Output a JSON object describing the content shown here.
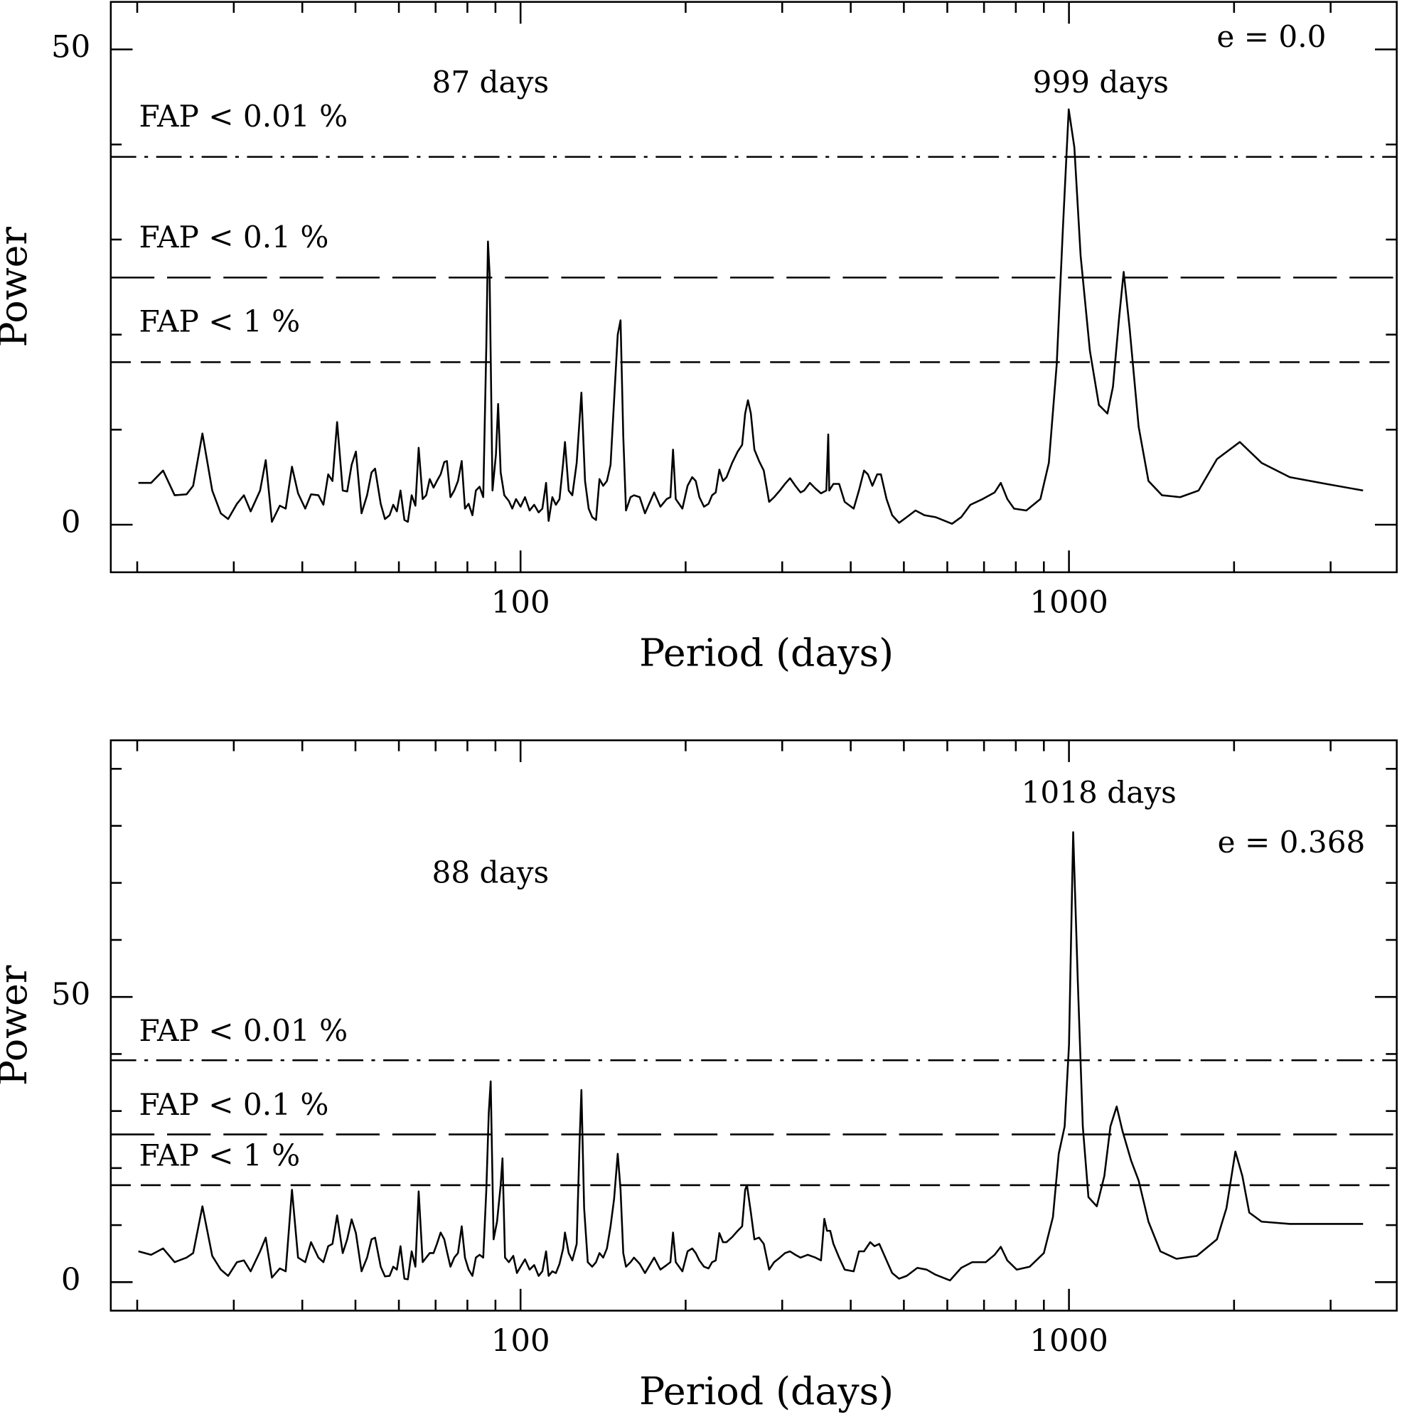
{
  "chart_data": [
    {
      "type": "line",
      "x_label": "Period (days)",
      "y_label": "Power",
      "xlog": true,
      "xlim": [
        17.9,
        3960
      ],
      "xticks": [
        100,
        1000
      ],
      "xminor": [
        20,
        30,
        40,
        50,
        60,
        70,
        80,
        90,
        200,
        300,
        400,
        500,
        600,
        700,
        800,
        900,
        2000,
        3000
      ],
      "ylim": [
        -5,
        55
      ],
      "yticks": [
        0,
        50
      ],
      "yminor": [
        10,
        20,
        30,
        40
      ],
      "annotations": [
        "87 days",
        "999 days",
        "e = 0.0"
      ],
      "reference_lines": [
        {
          "label": "FAP < 0.01 %",
          "value": 38.7,
          "style": "dashdot"
        },
        {
          "label": "FAP < 0.1 %",
          "value": 26.0,
          "style": "longdash"
        },
        {
          "label": "FAP < 1 %",
          "value": 17.1,
          "style": "dash"
        }
      ],
      "x": [
        20.1,
        21.2,
        22.3,
        23.4,
        24.6,
        25.3,
        26.3,
        27.4,
        28.4,
        29.3,
        30.4,
        31.3,
        32.2,
        33.5,
        34.3,
        35.2,
        36.4,
        37.3,
        38.3,
        39.3,
        40.5,
        41.5,
        42.8,
        43.7,
        44.6,
        45.4,
        46.3,
        47.4,
        48.3,
        49.2,
        50.1,
        51.3,
        52.5,
        53.5,
        54.3,
        55.6,
        56.6,
        57.7,
        58.6,
        59.5,
        60.4,
        61.4,
        62.3,
        63.3,
        64.3,
        65.2,
        66.3,
        67.3,
        68.3,
        69.4,
        70.4,
        71.5,
        72.6,
        73.4,
        74.5,
        75.7,
        76.9,
        78.1,
        79.2,
        80.4,
        81.7,
        82.9,
        84.2,
        85.5,
        86.6,
        87.2,
        87.8,
        88.9,
        90.2,
        91.0,
        92.0,
        93.4,
        95.2,
        96.6,
        98.1,
        100,
        101.9,
        103.9,
        105.9,
        107.9,
        109.6,
        111.3,
        112.5,
        114.3,
        116.0,
        117.8,
        119.6,
        120.5,
        122.4,
        124.3,
        126.6,
        129.1,
        131.1,
        133.1,
        135.1,
        137.3,
        139.3,
        141.5,
        143.7,
        145.9,
        148.1,
        150.4,
        152.2,
        153.9,
        155.7,
        158.7,
        161.0,
        164.9,
        168.6,
        175.2,
        179.9,
        184.7,
        187.6,
        189.7,
        191.9,
        197.3,
        201.6,
        205.6,
        208.7,
        211.9,
        216.0,
        220.2,
        223.5,
        226.9,
        230.4,
        234.0,
        237.5,
        243.1,
        248.9,
        253.6,
        256.8,
        259.8,
        263.0,
        267.0,
        272.2,
        277.6,
        284,
        290,
        297,
        303.5,
        310,
        317,
        324,
        329,
        337,
        345,
        353,
        361,
        364,
        365.5,
        372,
        381,
        390,
        405,
        414,
        423,
        430,
        438,
        447,
        454,
        465,
        476,
        490,
        506,
        525,
        545,
        571,
        612,
        636,
        661,
        696,
        732,
        751,
        772,
        794,
        836,
        887,
        919,
        950,
        975,
        999,
        1023,
        1050,
        1092,
        1134,
        1175,
        1203,
        1234,
        1258,
        1290,
        1340,
        1396,
        1478,
        1595,
        1723,
        1861,
        2049,
        2245,
        2527,
        2945,
        3437
      ],
      "series": [
        {
          "color": "#000000",
          "values": [
            4.4,
            4.4,
            5.7,
            3.1,
            3.2,
            4.1,
            9.6,
            3.6,
            1.2,
            0.6,
            2.2,
            3.1,
            1.4,
            3.6,
            6.8,
            0.3,
            2.0,
            1.7,
            6.1,
            3.3,
            1.7,
            3.2,
            3.1,
            2.1,
            5.3,
            4.6,
            10.8,
            3.6,
            3.5,
            6.3,
            7.7,
            1.2,
            3.1,
            5.5,
            5.9,
            2.2,
            0.6,
            1.0,
            2.1,
            1.4,
            3.6,
            0.5,
            0.3,
            3.1,
            2.0,
            8.1,
            2.7,
            3.1,
            4.8,
            3.9,
            4.6,
            5.3,
            6.6,
            6.7,
            2.9,
            3.6,
            4.6,
            6.7,
            1.7,
            2.2,
            1.0,
            3.6,
            4.0,
            2.9,
            18.8,
            29.8,
            26.4,
            3.6,
            7.4,
            12.7,
            5.5,
            3.1,
            2.5,
            1.7,
            2.7,
            1.9,
            2.9,
            1.5,
            2.1,
            1.3,
            1.7,
            4.4,
            0.4,
            2.9,
            2.1,
            2.7,
            6.5,
            8.7,
            3.6,
            3.1,
            6.5,
            13.9,
            4.6,
            1.7,
            0.8,
            0.5,
            4.8,
            4.1,
            4.6,
            6.3,
            13.1,
            20.0,
            21.5,
            9.3,
            1.5,
            2.9,
            3.1,
            2.9,
            1.2,
            3.4,
            1.9,
            2.7,
            2.9,
            7.9,
            2.7,
            1.7,
            4.1,
            5.0,
            4.6,
            2.9,
            1.9,
            2.2,
            3.1,
            3.4,
            5.8,
            4.6,
            5.0,
            6.5,
            7.7,
            8.4,
            11.7,
            13.1,
            11.7,
            7.9,
            6.7,
            5.7,
            2.4,
            2.9,
            3.6,
            4.3,
            4.9,
            4.1,
            3.4,
            3.6,
            4.4,
            3.8,
            3.3,
            3.6,
            9.5,
            3.6,
            4.3,
            4.3,
            2.4,
            1.7,
            3.6,
            5.7,
            5.3,
            4.1,
            5.3,
            5.3,
            2.7,
            1.0,
            0.2,
            0.8,
            1.5,
            1.0,
            0.8,
            0.1,
            0.8,
            2.1,
            2.7,
            3.4,
            4.4,
            2.7,
            1.7,
            1.5,
            2.7,
            6.5,
            16.9,
            31.2,
            43.7,
            39.7,
            28.3,
            18.3,
            12.6,
            11.7,
            14.5,
            21.7,
            26.6,
            20.7,
            10.3,
            4.6,
            3.1,
            2.9,
            3.6,
            6.9,
            8.7,
            6.5,
            5.0,
            4.3,
            3.6
          ]
        }
      ]
    },
    {
      "type": "line",
      "x_label": "Period (days)",
      "y_label": "Power",
      "xlog": true,
      "xlim": [
        17.9,
        3960
      ],
      "xticks": [
        100,
        1000
      ],
      "xminor": [
        20,
        30,
        40,
        50,
        60,
        70,
        80,
        90,
        200,
        300,
        400,
        500,
        600,
        700,
        800,
        900,
        2000,
        3000
      ],
      "ylim": [
        -5,
        95
      ],
      "yticks": [
        0,
        50
      ],
      "yminor": [
        10,
        20,
        30,
        40,
        60,
        70,
        80,
        90
      ],
      "annotations": [
        "1018 days",
        "88 days",
        "e = 0.368"
      ],
      "reference_lines": [
        {
          "label": "FAP < 0.01 %",
          "value": 38.9,
          "style": "dashdot"
        },
        {
          "label": "FAP < 0.1 %",
          "value": 25.9,
          "style": "longdash"
        },
        {
          "label": "FAP < 1 %",
          "value": 17.0,
          "style": "dash"
        }
      ],
      "x": [
        20.1,
        21.2,
        22.3,
        23.4,
        24.6,
        25.3,
        26.3,
        27.4,
        28.4,
        29.3,
        30.4,
        31.3,
        32.2,
        33.5,
        34.3,
        35.2,
        36.4,
        37.3,
        38.3,
        39.3,
        40.5,
        41.5,
        42.8,
        43.7,
        44.6,
        45.4,
        46.3,
        47.4,
        48.3,
        49.2,
        50.1,
        51.3,
        52.5,
        53.5,
        54.3,
        55.6,
        56.6,
        57.7,
        58.6,
        59.5,
        60.4,
        61.4,
        62.3,
        63.3,
        64.3,
        65.2,
        66.3,
        67.3,
        68.3,
        69.4,
        70.4,
        71.5,
        72.6,
        73.4,
        74.5,
        75.7,
        76.9,
        78.1,
        79.2,
        80.4,
        81.7,
        82.9,
        84.2,
        85.5,
        86.6,
        87.5,
        88.2,
        89.3,
        90.6,
        92.0,
        92.7,
        93.7,
        95.2,
        97.0,
        98.5,
        100,
        101.9,
        103.9,
        105.9,
        107.9,
        109.6,
        111.3,
        112.5,
        114.3,
        116.0,
        117.8,
        119.6,
        120.5,
        122.4,
        124.3,
        126.6,
        128.1,
        129.1,
        130.6,
        132.6,
        135.1,
        137.3,
        139.3,
        141.5,
        143.7,
        145.9,
        148.1,
        150.4,
        152.2,
        153.9,
        155.7,
        158.7,
        161.0,
        164.9,
        168.6,
        175.2,
        179.9,
        184.7,
        187.6,
        189.7,
        191.9,
        197.3,
        201.6,
        205.6,
        208.7,
        211.9,
        216.0,
        220.2,
        223.5,
        226.9,
        230.4,
        234.0,
        237.5,
        243.1,
        248.9,
        253.6,
        256.8,
        258.7,
        263.0,
        267.0,
        272.2,
        277.6,
        284,
        290,
        297,
        303.5,
        310,
        317,
        324,
        334,
        345,
        353,
        358,
        362,
        367,
        372,
        381,
        390,
        405,
        414,
        423,
        434,
        442,
        451,
        465,
        476,
        490,
        506,
        529,
        550,
        571,
        607,
        636,
        666,
        705,
        732,
        751,
        772,
        803,
        848,
        900,
        935,
        958,
        982,
        1000,
        1018,
        1038,
        1060,
        1085,
        1124,
        1160,
        1190,
        1222,
        1252,
        1298,
        1340,
        1396,
        1468,
        1570,
        1711,
        1861,
        1937,
        2011,
        2071,
        2132,
        2245,
        2527,
        2945,
        3437
      ],
      "series": [
        {
          "color": "#000000",
          "values": [
            5.4,
            4.8,
            5.9,
            3.5,
            4.3,
            5.1,
            13.3,
            4.6,
            2.2,
            1.1,
            3.5,
            3.8,
            1.9,
            5.4,
            7.8,
            0.8,
            2.4,
            1.9,
            16.2,
            4.3,
            3.5,
            7.0,
            4.3,
            3.5,
            6.3,
            6.7,
            11.7,
            5.1,
            7.5,
            11.0,
            8.6,
            1.9,
            4.3,
            7.5,
            7.8,
            2.7,
            1.0,
            1.1,
            2.7,
            2.2,
            6.3,
            0.6,
            0.5,
            5.4,
            2.7,
            15.9,
            3.5,
            4.3,
            5.1,
            5.1,
            6.7,
            8.7,
            7.5,
            5.4,
            2.7,
            4.3,
            5.1,
            9.8,
            4.3,
            2.2,
            1.1,
            4.3,
            4.8,
            4.3,
            16.2,
            29.7,
            35.2,
            7.5,
            10.6,
            17.0,
            21.7,
            4.3,
            3.5,
            4.6,
            1.6,
            2.7,
            4.0,
            2.2,
            3.0,
            1.1,
            1.9,
            5.4,
            1.1,
            1.9,
            1.6,
            3.2,
            5.9,
            8.7,
            5.1,
            3.8,
            6.7,
            24.1,
            33.7,
            13.0,
            3.5,
            2.7,
            3.5,
            5.1,
            4.3,
            5.9,
            9.8,
            14.6,
            22.5,
            16.2,
            5.1,
            2.7,
            3.5,
            4.3,
            3.2,
            1.6,
            4.3,
            2.2,
            3.0,
            3.5,
            8.7,
            3.5,
            1.9,
            5.4,
            5.9,
            5.1,
            3.8,
            2.7,
            2.4,
            3.5,
            3.8,
            8.6,
            7.0,
            7.0,
            7.9,
            9.0,
            9.8,
            16.2,
            17.0,
            12.2,
            7.5,
            7.8,
            6.7,
            2.2,
            3.5,
            4.3,
            5.1,
            5.4,
            4.8,
            4.3,
            4.8,
            4.3,
            3.8,
            11.1,
            9.0,
            9.0,
            6.7,
            4.3,
            2.2,
            1.9,
            5.4,
            5.4,
            7.0,
            6.3,
            6.7,
            3.8,
            1.6,
            0.6,
            1.1,
            2.5,
            2.2,
            1.3,
            0.3,
            2.5,
            3.5,
            3.5,
            4.8,
            6.2,
            3.8,
            2.2,
            2.7,
            5.1,
            11.4,
            22.5,
            27.3,
            41.6,
            78.9,
            52.7,
            27.3,
            14.9,
            13.3,
            18.6,
            27.3,
            30.8,
            26.5,
            21.3,
            17.8,
            10.6,
            5.4,
            4.1,
            4.6,
            7.5,
            13.0,
            22.9,
            18.6,
            12.2,
            10.6,
            10.2,
            10.2,
            10.2
          ]
        }
      ]
    }
  ]
}
